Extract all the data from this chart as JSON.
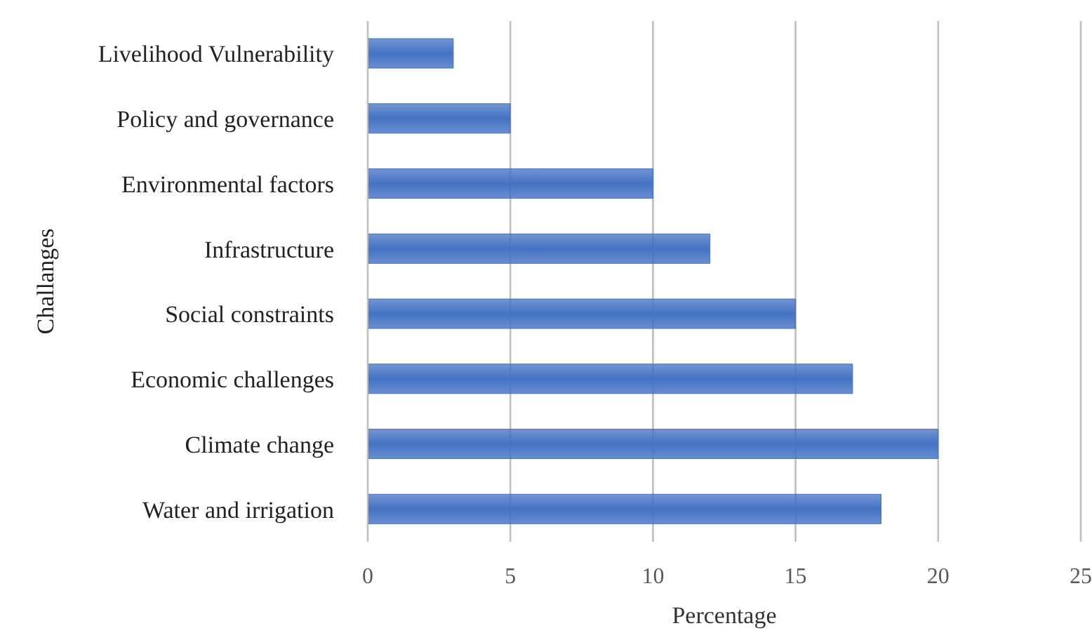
{
  "chart_data": {
    "type": "bar",
    "orientation": "horizontal",
    "xlabel": "Percentage",
    "ylabel": "Challanges",
    "categories": [
      "Livelihood Vulnerability",
      "Policy and governance",
      "Environmental factors",
      "Infrastructure",
      "Social constraints",
      "Economic challenges",
      "Climate change",
      "Water and irrigation"
    ],
    "values": [
      3,
      5,
      10,
      12,
      15,
      17,
      20,
      18
    ],
    "color": "#4472c4",
    "xlim": [
      0,
      25
    ],
    "xticks": [
      0,
      5,
      10,
      15,
      20,
      25
    ],
    "grid": "x"
  }
}
